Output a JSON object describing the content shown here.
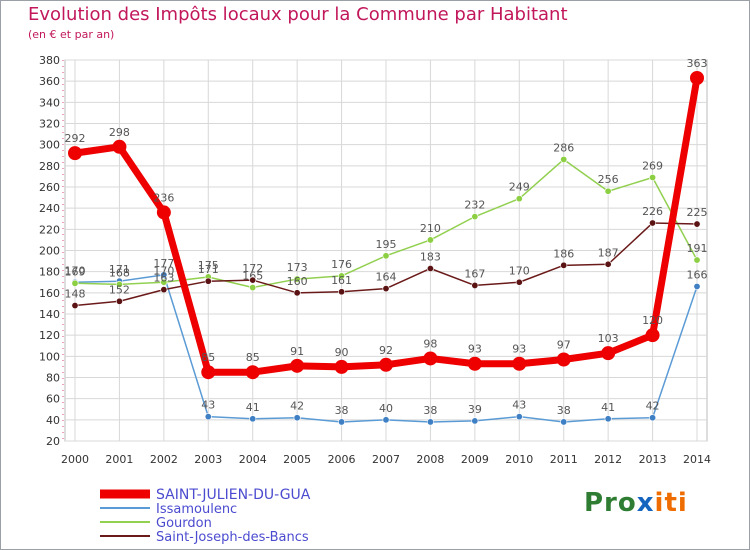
{
  "header": {
    "title": "Evolution des Impôts locaux pour la Commune par Habitant",
    "subtitle": "(en € et par an)"
  },
  "logo": {
    "part1": "Pro",
    "part2": "x",
    "part3": "iti"
  },
  "colors": {
    "title": "#c2185b",
    "grid": "#d8d8d8",
    "axis_text": "#333333",
    "label_text": "#555555"
  },
  "chart_data": {
    "type": "line",
    "title": "Evolution des Impôts locaux pour la Commune par Habitant",
    "ylabel": "(en € et par an)",
    "xlabel": "",
    "categories": [
      "2000",
      "2001",
      "2002",
      "2003",
      "2004",
      "2005",
      "2006",
      "2007",
      "2008",
      "2009",
      "2010",
      "2011",
      "2012",
      "2013",
      "2014"
    ],
    "ylim": [
      20,
      380
    ],
    "yticks": [
      20,
      40,
      60,
      80,
      100,
      120,
      140,
      160,
      180,
      200,
      220,
      240,
      260,
      280,
      300,
      320,
      340,
      360,
      380
    ],
    "grid": true,
    "legend_position": "bottom-left",
    "series": [
      {
        "name": "SAINT-JULIEN-DU-GUA",
        "color": "#ee0000",
        "marker_color": "#ee0000",
        "bold": true,
        "values": [
          292,
          298,
          236,
          85,
          85,
          91,
          90,
          92,
          98,
          93,
          93,
          97,
          103,
          120,
          363
        ]
      },
      {
        "name": "Issamoulenc",
        "color": "#5b9bd5",
        "marker_color": "#3f7fc4",
        "bold": false,
        "values": [
          170,
          171,
          177,
          43,
          41,
          42,
          38,
          40,
          38,
          39,
          43,
          38,
          41,
          42,
          166
        ]
      },
      {
        "name": "Gourdon",
        "color": "#92d050",
        "marker_color": "#8ccf42",
        "bold": false,
        "values": [
          169,
          168,
          170,
          175,
          165,
          173,
          176,
          195,
          210,
          232,
          249,
          286,
          256,
          269,
          191
        ]
      },
      {
        "name": "Saint-Joseph-des-Bancs",
        "color": "#6b1a1a",
        "marker_color": "#5a1212",
        "bold": false,
        "values": [
          148,
          152,
          163,
          171,
          172,
          160,
          161,
          164,
          183,
          167,
          170,
          186,
          187,
          226,
          225
        ]
      }
    ]
  }
}
